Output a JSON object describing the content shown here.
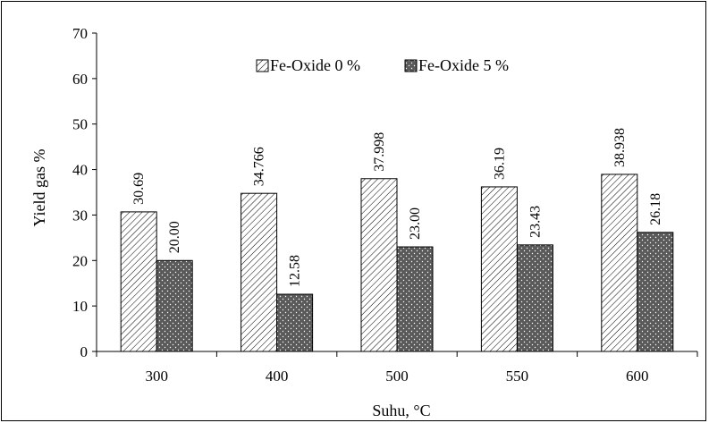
{
  "chart_data": {
    "type": "bar",
    "title": "",
    "xlabel": "Suhu, °C",
    "ylabel": "Yield gas %",
    "categories": [
      "300",
      "400",
      "500",
      "550",
      "600"
    ],
    "series": [
      {
        "name": "Fe-Oxide 0 %",
        "values": [
          30.69,
          34.766,
          37.998,
          36.19,
          38.938
        ],
        "labels": [
          "30.69",
          "34.766",
          "37.998",
          "36.19",
          "38.938"
        ],
        "fill": "diagonal-hatch",
        "color": "#ffffff"
      },
      {
        "name": "Fe-Oxide 5 %",
        "values": [
          20.0,
          12.58,
          23.0,
          23.43,
          26.18
        ],
        "labels": [
          "20.00",
          "12.58",
          "23.00",
          "23.43",
          "26.18"
        ],
        "fill": "dotted-dark",
        "color": "#595959"
      }
    ],
    "ylim": [
      0,
      70
    ],
    "yticks": [
      "0",
      "10",
      "20",
      "30",
      "40",
      "50",
      "60",
      "70"
    ],
    "grid": false,
    "legend_position": "top"
  }
}
